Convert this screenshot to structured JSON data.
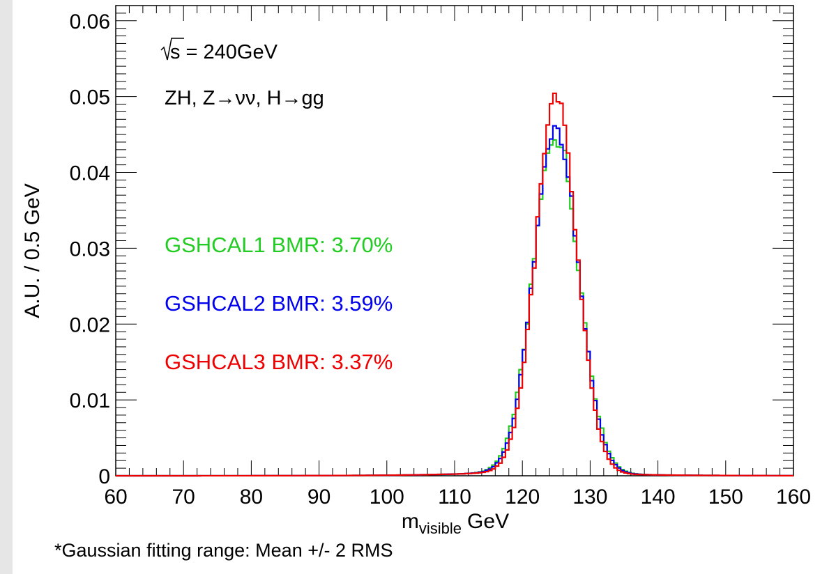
{
  "chart_data": {
    "type": "histogram-step",
    "xlabel_main": "m",
    "xlabel_sub": "visible",
    "xlabel_unit": "GeV",
    "ylabel": "A.U. / 0.5 GeV",
    "xlim": [
      60,
      160
    ],
    "ylim": [
      0,
      0.062
    ],
    "bin_width": 0.5,
    "x_ticks": [
      "60",
      "70",
      "80",
      "90",
      "100",
      "110",
      "120",
      "130",
      "140",
      "150",
      "160"
    ],
    "y_ticks": [
      "0",
      "0.01",
      "0.02",
      "0.03",
      "0.04",
      "0.05",
      "0.06"
    ],
    "annotations": {
      "energy_sqrt": "s",
      "energy_value": " = 240GeV",
      "process": "ZH, Z→νν, H→gg"
    },
    "series": [
      {
        "name": "GSHCAL1 BMR: 3.70%",
        "color": "#22cc22",
        "mean": 125.0,
        "sigma": 3.35,
        "peak": 0.0442
      },
      {
        "name": "GSHCAL2 BMR: 3.59%",
        "color": "#0000ee",
        "mean": 125.0,
        "sigma": 3.25,
        "peak": 0.0457
      },
      {
        "name": "GSHCAL3 BMR: 3.37%",
        "color": "#ee0000",
        "mean": 125.0,
        "sigma": 3.05,
        "peak": 0.0485
      }
    ]
  },
  "footnote": "*Gaussian fitting range: Mean +/- 2 RMS"
}
